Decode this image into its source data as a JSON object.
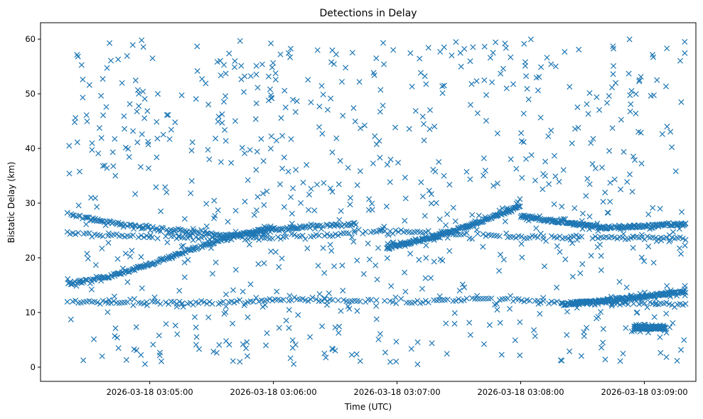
{
  "chart_data": {
    "type": "scatter",
    "title": "Detections in Delay",
    "xlabel": "Time (UTC)",
    "ylabel": "Bistatic Delay (km)",
    "x_axis_type": "time",
    "xlim": [
      "2026-03-18 03:04:07",
      "2026-03-18 03:09:25"
    ],
    "ylim": [
      -2.6,
      63
    ],
    "x_ticks": [
      {
        "value": "2026-03-18 03:05:00",
        "label": "2026-03-18 03:05:00"
      },
      {
        "value": "2026-03-18 03:06:00",
        "label": "2026-03-18 03:06:00"
      },
      {
        "value": "2026-03-18 03:07:00",
        "label": "2026-03-18 03:07:00"
      },
      {
        "value": "2026-03-18 03:08:00",
        "label": "2026-03-18 03:08:00"
      },
      {
        "value": "2026-03-18 03:09:00",
        "label": "2026-03-18 03:09:00"
      }
    ],
    "y_ticks": [
      0,
      10,
      20,
      30,
      40,
      50,
      60
    ],
    "grid": false,
    "legend": "none",
    "marker": "x",
    "color": "#1f77b4",
    "time_range": [
      "2026-03-18 03:04:20",
      "2026-03-18 03:09:20"
    ],
    "approx_points": 2600,
    "series": [
      {
        "shape": "horizontal-track",
        "points": [
          [
            "2026-03-18 03:04:20",
            12.0
          ],
          [
            "2026-03-18 03:05:00",
            11.8
          ],
          [
            "2026-03-18 03:05:30",
            11.7
          ],
          [
            "2026-03-18 03:06:00",
            12.4
          ],
          [
            "2026-03-18 03:06:40",
            12.2
          ],
          [
            "2026-03-18 03:07:10",
            11.9
          ],
          [
            "2026-03-18 03:07:40",
            12.6
          ],
          [
            "2026-03-18 03:08:20",
            11.8
          ],
          [
            "2026-03-18 03:09:20",
            11.6
          ]
        ]
      },
      {
        "shape": "rising-track",
        "points": [
          [
            "2026-03-18 03:04:20",
            15.2
          ],
          [
            "2026-03-18 03:04:40",
            16.5
          ],
          [
            "2026-03-18 03:05:00",
            18.8
          ],
          [
            "2026-03-18 03:05:20",
            21.5
          ],
          [
            "2026-03-18 03:05:40",
            24.0
          ],
          [
            "2026-03-18 03:06:00",
            25.5
          ]
        ]
      },
      {
        "shape": "rising-track",
        "points": [
          [
            "2026-03-18 03:06:55",
            21.8
          ],
          [
            "2026-03-18 03:07:20",
            24.0
          ],
          [
            "2026-03-18 03:07:40",
            26.5
          ],
          [
            "2026-03-18 03:08:00",
            29.5
          ]
        ]
      },
      {
        "shape": "falling-track",
        "points": [
          [
            "2026-03-18 03:08:00",
            27.6
          ],
          [
            "2026-03-18 03:08:20",
            26.5
          ],
          [
            "2026-03-18 03:08:40",
            25.5
          ],
          [
            "2026-03-18 03:09:00",
            25.8
          ],
          [
            "2026-03-18 03:09:20",
            26.2
          ]
        ]
      },
      {
        "shape": "falling-track",
        "points": [
          [
            "2026-03-18 03:04:20",
            28.0
          ],
          [
            "2026-03-18 03:04:40",
            26.5
          ],
          [
            "2026-03-18 03:05:10",
            25.0
          ],
          [
            "2026-03-18 03:05:40",
            24.0
          ],
          [
            "2026-03-18 03:06:10",
            25.5
          ],
          [
            "2026-03-18 03:06:40",
            26.2
          ]
        ]
      },
      {
        "shape": "rising-track",
        "points": [
          [
            "2026-03-18 03:08:20",
            11.5
          ],
          [
            "2026-03-18 03:08:50",
            12.5
          ],
          [
            "2026-03-18 03:09:20",
            13.8
          ]
        ]
      },
      {
        "shape": "horizontal-track",
        "points": [
          [
            "2026-03-18 03:04:20",
            24.5
          ],
          [
            "2026-03-18 03:05:00",
            23.8
          ],
          [
            "2026-03-18 03:06:00",
            23.5
          ],
          [
            "2026-03-18 03:07:00",
            25.0
          ],
          [
            "2026-03-18 03:08:00",
            23.8
          ],
          [
            "2026-03-18 03:09:20",
            23.5
          ]
        ]
      },
      {
        "shape": "horizontal-track",
        "points": [
          [
            "2026-03-18 03:08:55",
            7.2
          ],
          [
            "2026-03-18 03:09:10",
            7.2
          ]
        ]
      },
      {
        "shape": "scattered-clutter",
        "y_range": [
          0.5,
          60
        ]
      }
    ]
  }
}
